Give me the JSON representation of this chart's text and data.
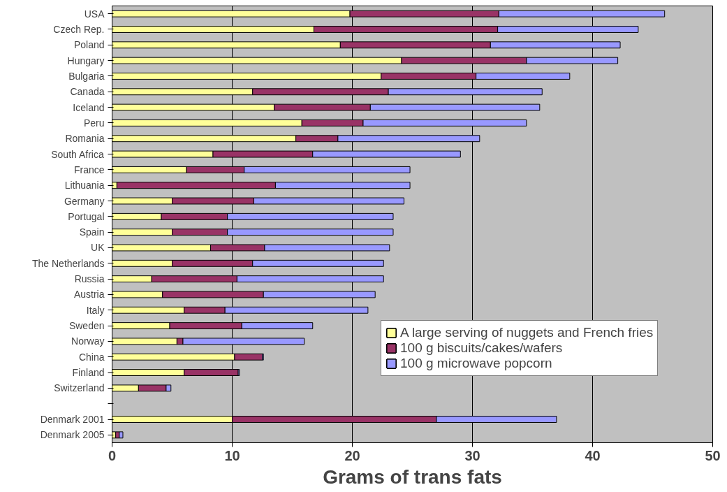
{
  "chart_data": {
    "type": "bar",
    "orientation": "horizontal",
    "stacked": true,
    "xlabel": "Grams of trans fats",
    "categories": [
      "USA",
      "Czech Rep.",
      "Poland",
      "Hungary",
      "Bulgaria",
      "Canada",
      "Iceland",
      "Peru",
      "Romania",
      "South Africa",
      "France",
      "Lithuania",
      "Germany",
      "Portugal",
      "Spain",
      "UK",
      "The Netherlands",
      "Russia",
      "Austria",
      "Italy",
      "Sweden",
      "Norway",
      "China",
      "Finland",
      "Switzerland",
      null,
      "Denmark 2001",
      "Denmark 2005"
    ],
    "series": [
      {
        "name": "A large serving of nuggets and French fries",
        "color": "#ffff99",
        "values": [
          19.8,
          16.8,
          19.0,
          24.1,
          22.4,
          11.7,
          13.5,
          15.8,
          15.3,
          8.4,
          6.2,
          0.4,
          5.0,
          4.1,
          5.0,
          8.2,
          5.0,
          3.3,
          4.2,
          6.0,
          4.8,
          5.4,
          10.2,
          6.0,
          2.2,
          null,
          10.0,
          0.3
        ]
      },
      {
        "name": "100 g biscuits/cakes/wafers",
        "color": "#993366",
        "values": [
          12.4,
          15.3,
          12.5,
          10.4,
          7.9,
          11.3,
          8.0,
          5.1,
          3.5,
          8.3,
          4.8,
          13.2,
          6.8,
          5.5,
          4.6,
          4.5,
          6.7,
          7.1,
          8.4,
          3.4,
          6.0,
          0.5,
          2.3,
          4.5,
          2.3,
          null,
          17.0,
          0.3
        ]
      },
      {
        "name": "100 g microwave popcorn",
        "color": "#9999ff",
        "values": [
          13.8,
          11.7,
          10.8,
          7.6,
          7.8,
          12.8,
          14.1,
          13.6,
          11.8,
          12.3,
          13.8,
          11.2,
          12.5,
          13.8,
          13.8,
          10.4,
          10.9,
          12.2,
          9.3,
          11.9,
          5.9,
          10.1,
          0.1,
          0.1,
          0.4,
          null,
          10.0,
          0.3
        ]
      }
    ],
    "xlim": [
      0,
      50
    ],
    "xticks": [
      0,
      10,
      20,
      30,
      40,
      50
    ],
    "grid": "x",
    "legend": "bottom right"
  }
}
